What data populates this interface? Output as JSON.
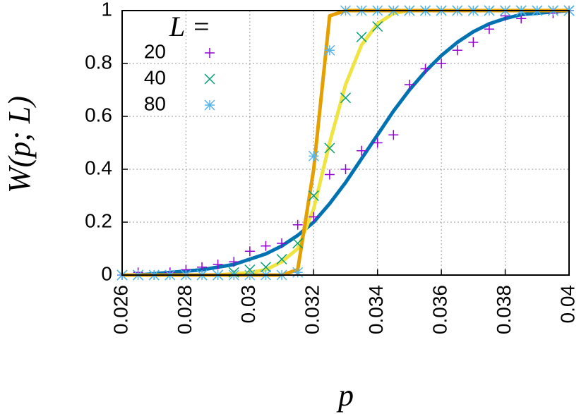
{
  "chart_data": {
    "type": "scatter",
    "xlabel": "p",
    "ylabel": "W(p; L)",
    "legend_title": "L =",
    "legend": "upper left",
    "grid": true,
    "xlim": [
      0.026,
      0.04
    ],
    "xticks": [
      0.026,
      0.028,
      0.03,
      0.032,
      0.034,
      0.036,
      0.038,
      0.04
    ],
    "ylim": [
      0,
      1
    ],
    "yticks": [
      0,
      0.2,
      0.4,
      0.6,
      0.8,
      1
    ],
    "x": [
      0.026,
      0.0265,
      0.027,
      0.0275,
      0.028,
      0.0285,
      0.029,
      0.0295,
      0.03,
      0.0305,
      0.031,
      0.0315,
      0.032,
      0.0325,
      0.033,
      0.0335,
      0.034,
      0.0345,
      0.035,
      0.0355,
      0.036,
      0.0365,
      0.037,
      0.0375,
      0.038,
      0.0385,
      0.039,
      0.0395,
      0.04
    ],
    "series": [
      {
        "name": "20",
        "color": "#9400d3",
        "marker": "plus",
        "values": [
          0,
          0.01,
          0,
          0.01,
          0.02,
          0.03,
          0.04,
          0.05,
          0.09,
          0.11,
          0.12,
          0.19,
          0.22,
          0.38,
          0.4,
          0.47,
          0.5,
          0.53,
          0.72,
          0.78,
          0.8,
          0.85,
          0.88,
          0.93,
          0.98,
          0.97,
          1,
          0.99,
          1
        ]
      },
      {
        "name": "40",
        "color": "#009e73",
        "marker": "cross",
        "values": [
          0,
          0,
          0,
          0,
          0,
          0,
          0,
          0.01,
          0.02,
          0.03,
          0.06,
          0.12,
          0.3,
          0.48,
          0.67,
          0.9,
          0.94,
          1,
          1,
          1,
          1,
          1,
          1,
          1,
          1,
          1,
          1,
          1,
          1
        ]
      },
      {
        "name": "80",
        "color": "#56b4e9",
        "marker": "star",
        "values": [
          0,
          0,
          0,
          0,
          0,
          0,
          0,
          0,
          0,
          0,
          0,
          0.01,
          0.45,
          0.85,
          1,
          1,
          1,
          1,
          1,
          1,
          1,
          1,
          1,
          1,
          1,
          1,
          1,
          1,
          1
        ]
      }
    ],
    "fits": [
      {
        "color": "#0072b2",
        "values": [
          0,
          0,
          0.005,
          0.01,
          0.015,
          0.02,
          0.03,
          0.04,
          0.06,
          0.08,
          0.11,
          0.15,
          0.2,
          0.27,
          0.35,
          0.44,
          0.53,
          0.62,
          0.7,
          0.77,
          0.83,
          0.88,
          0.92,
          0.95,
          0.97,
          0.985,
          0.99,
          0.995,
          1
        ]
      },
      {
        "color": "#f0e442",
        "values": [
          0,
          0,
          0,
          0,
          0,
          0,
          0,
          0.005,
          0.01,
          0.02,
          0.05,
          0.1,
          0.25,
          0.5,
          0.72,
          0.87,
          0.95,
          0.99,
          1,
          1,
          1,
          1,
          1,
          1,
          1,
          1,
          1,
          1,
          1
        ]
      },
      {
        "color": "#e69f00",
        "values": [
          0,
          0,
          0,
          0,
          0,
          0,
          0,
          0,
          0,
          0,
          0,
          0.02,
          0.4,
          0.98,
          1,
          1,
          1,
          1,
          1,
          1,
          1,
          1,
          1,
          1,
          1,
          1,
          1,
          1,
          1
        ]
      }
    ]
  }
}
